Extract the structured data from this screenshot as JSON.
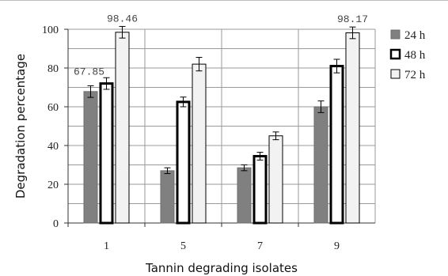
{
  "chart_data": {
    "type": "bar",
    "categories": [
      "1",
      "5",
      "7",
      "9"
    ],
    "series": [
      {
        "name": "24 h",
        "values": [
          67.85,
          27,
          28.5,
          60
        ],
        "errors": [
          3.0,
          1.5,
          1.5,
          3.0
        ],
        "color": "#808080"
      },
      {
        "name": "48 h",
        "values": [
          72,
          62.5,
          34.5,
          81
        ],
        "errors": [
          3.0,
          2.5,
          2.0,
          3.5
        ],
        "color": "#ffffff"
      },
      {
        "name": "72 h",
        "values": [
          98.46,
          82,
          45,
          98.17
        ],
        "errors": [
          3.0,
          3.5,
          2.0,
          3.0
        ],
        "color": "#f2f2f2"
      }
    ],
    "data_labels": [
      {
        "series": 0,
        "category": 0,
        "text": "67.85"
      },
      {
        "series": 2,
        "category": 0,
        "text": "98.46"
      },
      {
        "series": 2,
        "category": 3,
        "text": "98.17"
      }
    ],
    "title": "",
    "xlabel": "Tannin degrading isolates",
    "ylabel": "Degradation percentage",
    "ylim": [
      0,
      100
    ],
    "yticks": [
      "0",
      "20",
      "40",
      "60",
      "80",
      "100"
    ],
    "grid": true,
    "legend_position": "right"
  }
}
